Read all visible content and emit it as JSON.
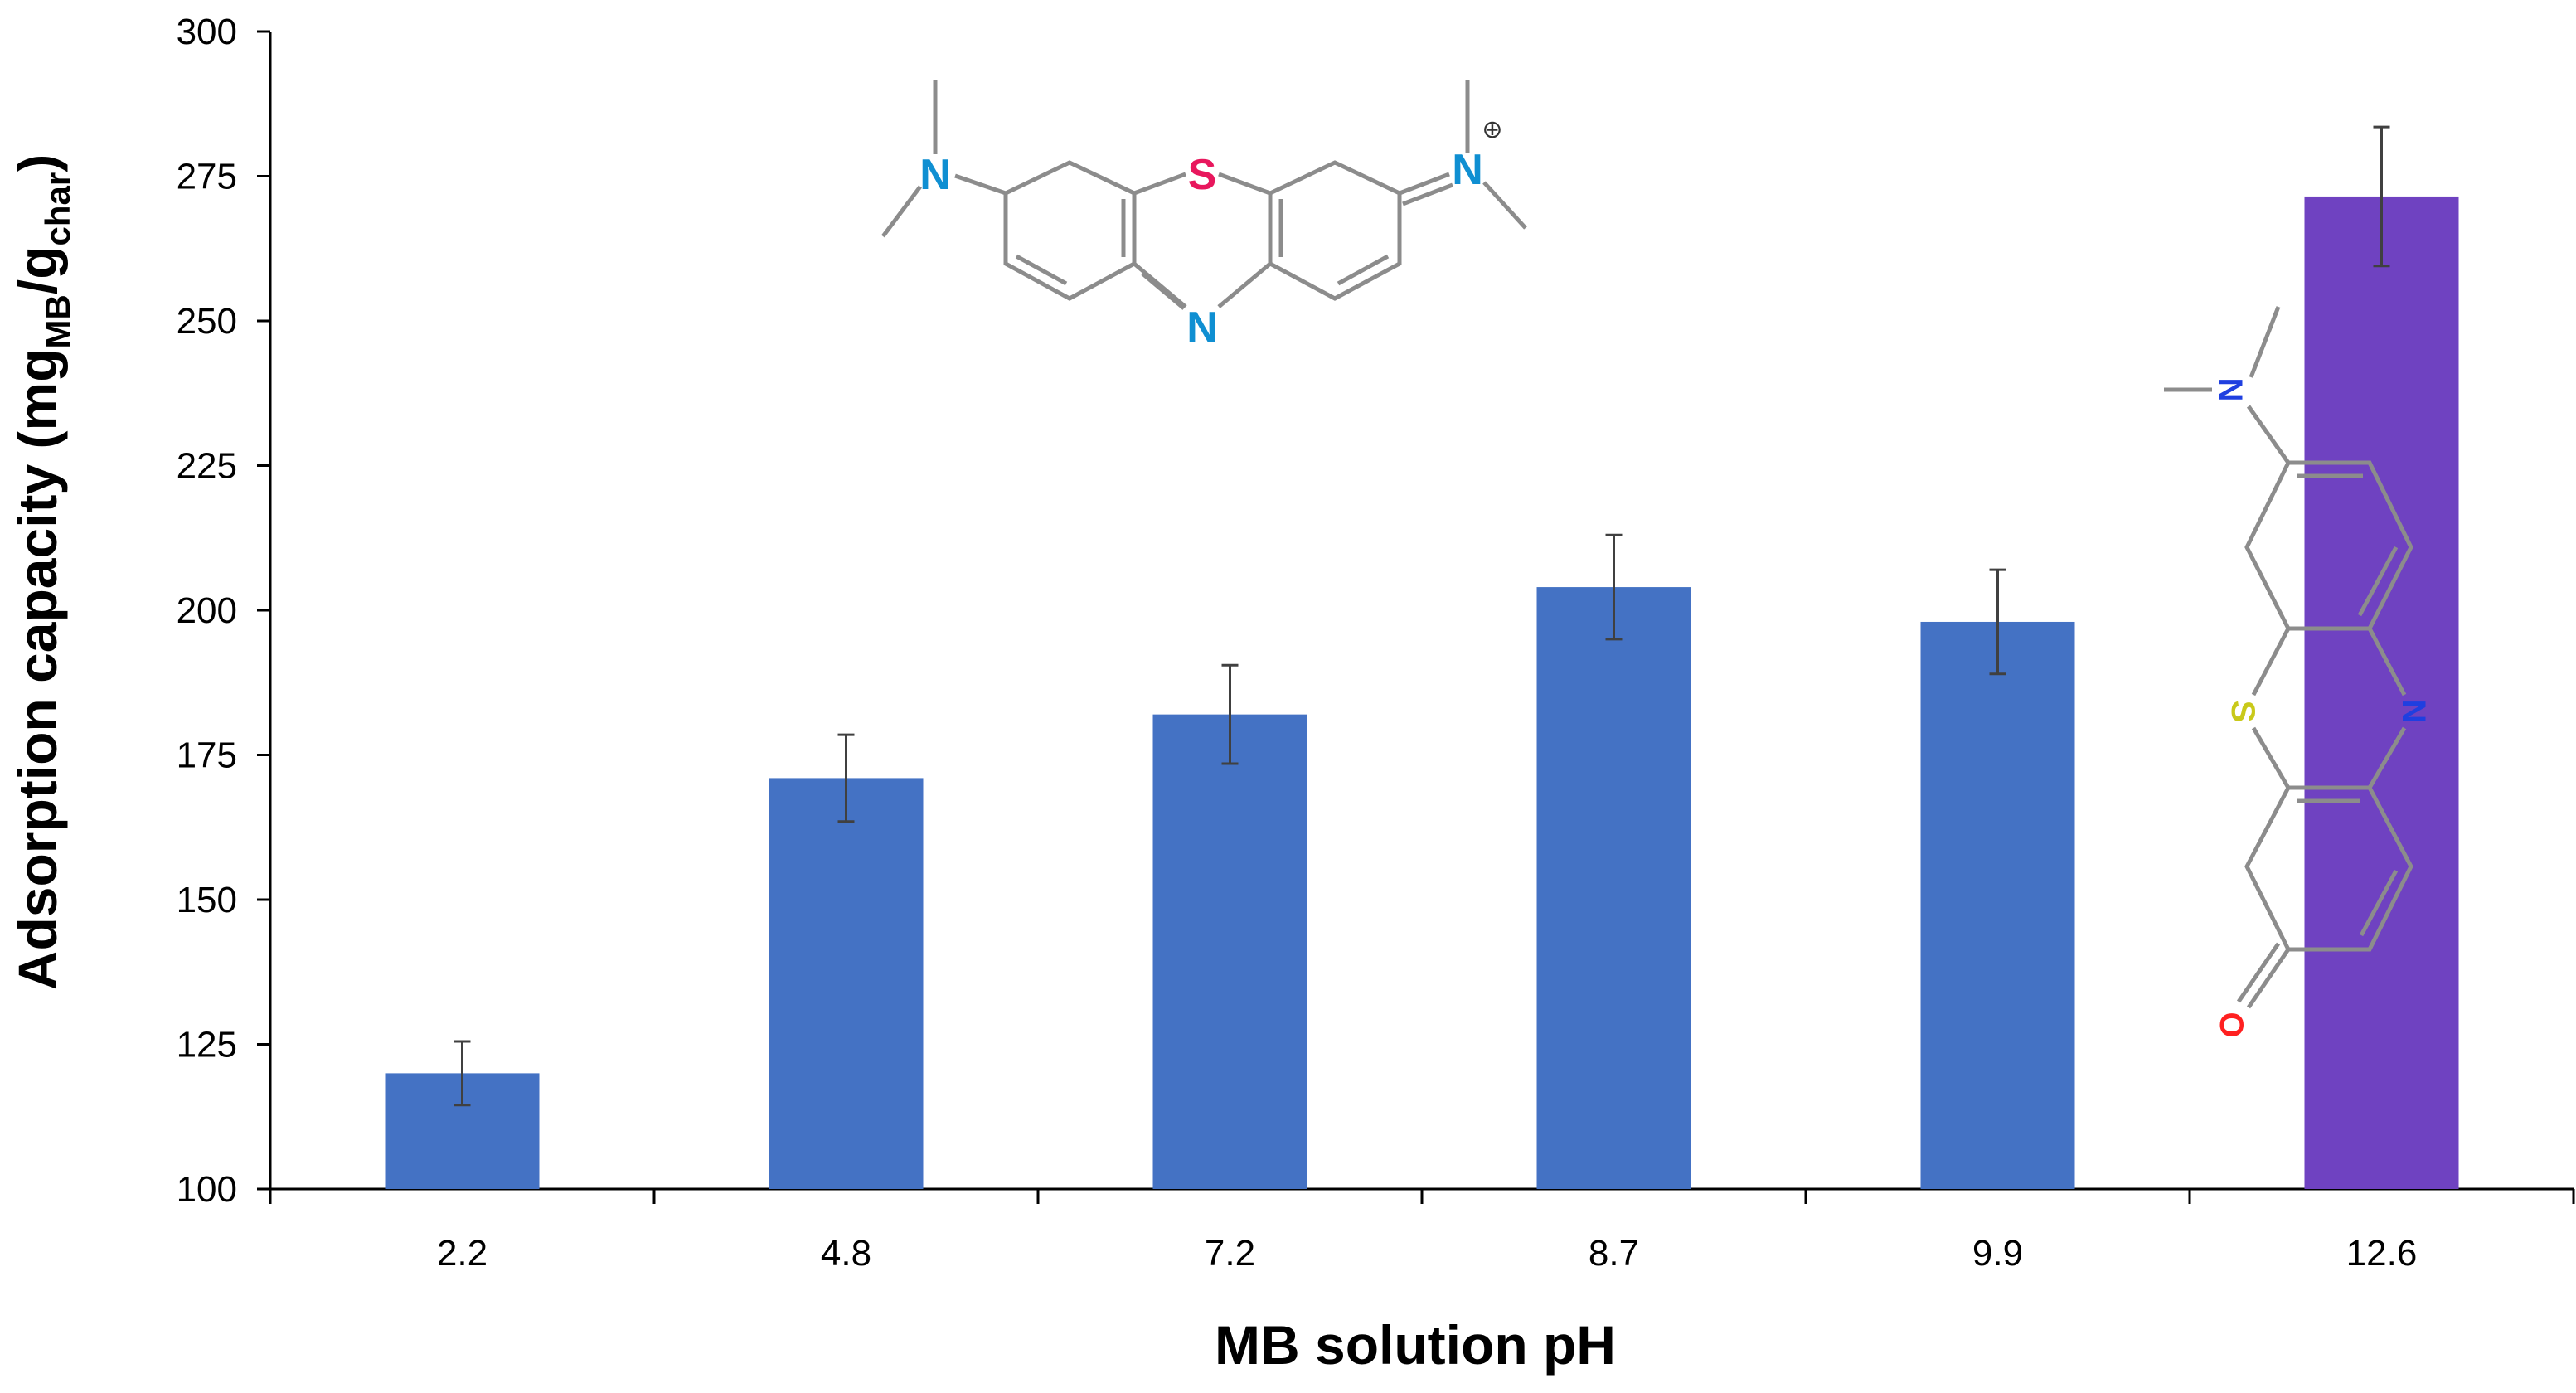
{
  "chart_data": {
    "type": "bar",
    "xlabel": "MB solution pH",
    "ylabel": {
      "main": "Adsorption capacity (mg",
      "sub1": "MB",
      "mid": "/g",
      "sub2": "char",
      "end": ")"
    },
    "categories": [
      "2.2",
      "4.8",
      "7.2",
      "8.7",
      "9.9",
      "12.6"
    ],
    "values": [
      120,
      171,
      182,
      204,
      198,
      271.5
    ],
    "error": [
      5.5,
      7.5,
      8.5,
      9,
      9,
      12
    ],
    "bar_colors": [
      "#4472c4",
      "#4472c4",
      "#4472c4",
      "#4472c4",
      "#4472c4",
      "#6f42c1"
    ],
    "ylim": [
      100,
      300
    ],
    "yticks": [
      "100",
      "125",
      "150",
      "175",
      "200",
      "225",
      "250",
      "275",
      "300"
    ],
    "grid": false,
    "legend": "none"
  },
  "molecules": {
    "top": {
      "atoms": [
        "N",
        "S",
        "N",
        "N",
        "⊕"
      ],
      "colors": {
        "N": "#0f8fd2",
        "S": "#e8175d",
        "bond": "#8c8c8c"
      }
    },
    "inset": {
      "atoms": [
        "N",
        "S",
        "N",
        "O"
      ],
      "colors": {
        "N": "#1f3fe0",
        "S": "#c9c91a",
        "O": "#ff2020",
        "bond": "#8c8c8c"
      }
    }
  }
}
